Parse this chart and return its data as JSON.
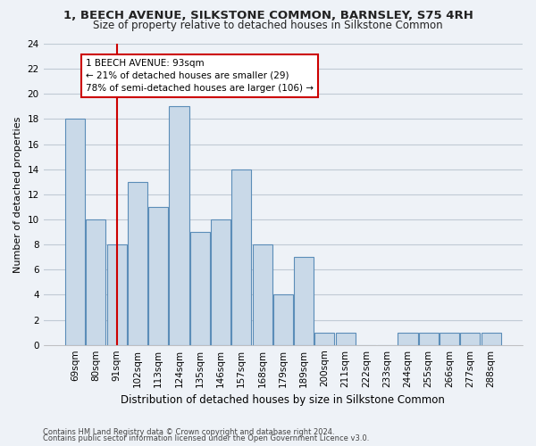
{
  "title1": "1, BEECH AVENUE, SILKSTONE COMMON, BARNSLEY, S75 4RH",
  "title2": "Size of property relative to detached houses in Silkstone Common",
  "xlabel": "Distribution of detached houses by size in Silkstone Common",
  "ylabel": "Number of detached properties",
  "categories": [
    "69sqm",
    "80sqm",
    "91sqm",
    "102sqm",
    "113sqm",
    "124sqm",
    "135sqm",
    "146sqm",
    "157sqm",
    "168sqm",
    "179sqm",
    "189sqm",
    "200sqm",
    "211sqm",
    "222sqm",
    "233sqm",
    "244sqm",
    "255sqm",
    "266sqm",
    "277sqm",
    "288sqm"
  ],
  "values": [
    18,
    10,
    8,
    13,
    11,
    19,
    9,
    10,
    14,
    8,
    4,
    7,
    1,
    1,
    0,
    0,
    1,
    1,
    1,
    1,
    1
  ],
  "bar_color": "#c9d9e8",
  "bar_edge_color": "#5b8db8",
  "annotation_text": "1 BEECH AVENUE: 93sqm\n← 21% of detached houses are smaller (29)\n78% of semi-detached houses are larger (106) →",
  "annotation_box_color": "#ffffff",
  "annotation_box_edge": "#cc0000",
  "vline_x": 2.0,
  "vline_color": "#cc0000",
  "ylim": [
    0,
    24
  ],
  "yticks": [
    0,
    2,
    4,
    6,
    8,
    10,
    12,
    14,
    16,
    18,
    20,
    22,
    24
  ],
  "footer1": "Contains HM Land Registry data © Crown copyright and database right 2024.",
  "footer2": "Contains public sector information licensed under the Open Government Licence v3.0.",
  "bg_color": "#eef2f7",
  "plot_bg_color": "#eef2f7",
  "title1_fontsize": 9.5,
  "title2_fontsize": 8.5,
  "ylabel_fontsize": 8.0,
  "xlabel_fontsize": 8.5,
  "tick_fontsize": 7.5,
  "annot_fontsize": 7.5,
  "footer_fontsize": 6.0
}
